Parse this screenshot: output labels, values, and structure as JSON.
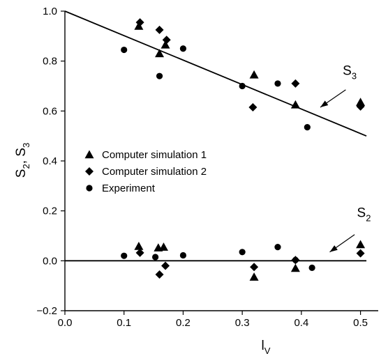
{
  "chart_data": {
    "type": "scatter",
    "xlabel": "l",
    "xlabel_sub": "V",
    "ylabel_parts": [
      "S",
      "2",
      ", S",
      "3"
    ],
    "xlim": [
      0.0,
      0.53
    ],
    "ylim": [
      -0.2,
      1.0
    ],
    "xticks": [
      0.0,
      0.1,
      0.2,
      0.3,
      0.4,
      0.5
    ],
    "xtick_labels": [
      "0.0",
      "0.1",
      "0.2",
      "0.3",
      "0.4",
      "0.5"
    ],
    "yticks": [
      -0.2,
      0.0,
      0.2,
      0.4,
      0.6,
      0.8,
      1.0
    ],
    "ytick_labels": [
      "−0.2",
      "0.0",
      "0.2",
      "0.4",
      "0.6",
      "0.8",
      "1.0"
    ],
    "grid": false,
    "legend_position": "center-left",
    "series": [
      {
        "name": "Computer simulation 1",
        "marker": "triangle",
        "points": [
          [
            0.125,
            0.94
          ],
          [
            0.16,
            0.83
          ],
          [
            0.17,
            0.865
          ],
          [
            0.32,
            0.745
          ],
          [
            0.39,
            0.625
          ],
          [
            0.5,
            0.635
          ],
          [
            0.125,
            0.058
          ],
          [
            0.158,
            0.052
          ],
          [
            0.167,
            0.055
          ],
          [
            0.32,
            -0.065
          ],
          [
            0.39,
            -0.03
          ],
          [
            0.5,
            0.065
          ]
        ]
      },
      {
        "name": "Computer simulation 2",
        "marker": "diamond",
        "points": [
          [
            0.127,
            0.955
          ],
          [
            0.16,
            0.925
          ],
          [
            0.172,
            0.885
          ],
          [
            0.318,
            0.615
          ],
          [
            0.39,
            0.71
          ],
          [
            0.5,
            0.618
          ],
          [
            0.127,
            0.032
          ],
          [
            0.16,
            -0.055
          ],
          [
            0.17,
            -0.02
          ],
          [
            0.32,
            -0.025
          ],
          [
            0.39,
            0.003
          ],
          [
            0.5,
            0.03
          ]
        ]
      },
      {
        "name": "Experiment",
        "marker": "circle",
        "points": [
          [
            0.1,
            0.845
          ],
          [
            0.16,
            0.74
          ],
          [
            0.2,
            0.85
          ],
          [
            0.3,
            0.7
          ],
          [
            0.36,
            0.71
          ],
          [
            0.41,
            0.535
          ],
          [
            0.1,
            0.02
          ],
          [
            0.153,
            0.015
          ],
          [
            0.2,
            0.022
          ],
          [
            0.3,
            0.035
          ],
          [
            0.36,
            0.055
          ],
          [
            0.39,
            0.003
          ],
          [
            0.418,
            -0.028
          ]
        ]
      }
    ],
    "lines": [
      {
        "name": "S3",
        "x": [
          0.0,
          0.51
        ],
        "y": [
          1.0,
          0.5
        ]
      },
      {
        "name": "S2",
        "x": [
          0.0,
          0.51
        ],
        "y": [
          0.0,
          0.0
        ]
      }
    ],
    "annotations": [
      {
        "label": "S",
        "sub": "3",
        "x": 0.47,
        "y": 0.745,
        "arrow_from": [
          0.475,
          0.685
        ],
        "arrow_to": [
          0.432,
          0.615
        ]
      },
      {
        "label": "S",
        "sub": "2",
        "x": 0.494,
        "y": 0.175,
        "arrow_from": [
          0.49,
          0.105
        ],
        "arrow_to": [
          0.448,
          0.035
        ]
      }
    ]
  }
}
